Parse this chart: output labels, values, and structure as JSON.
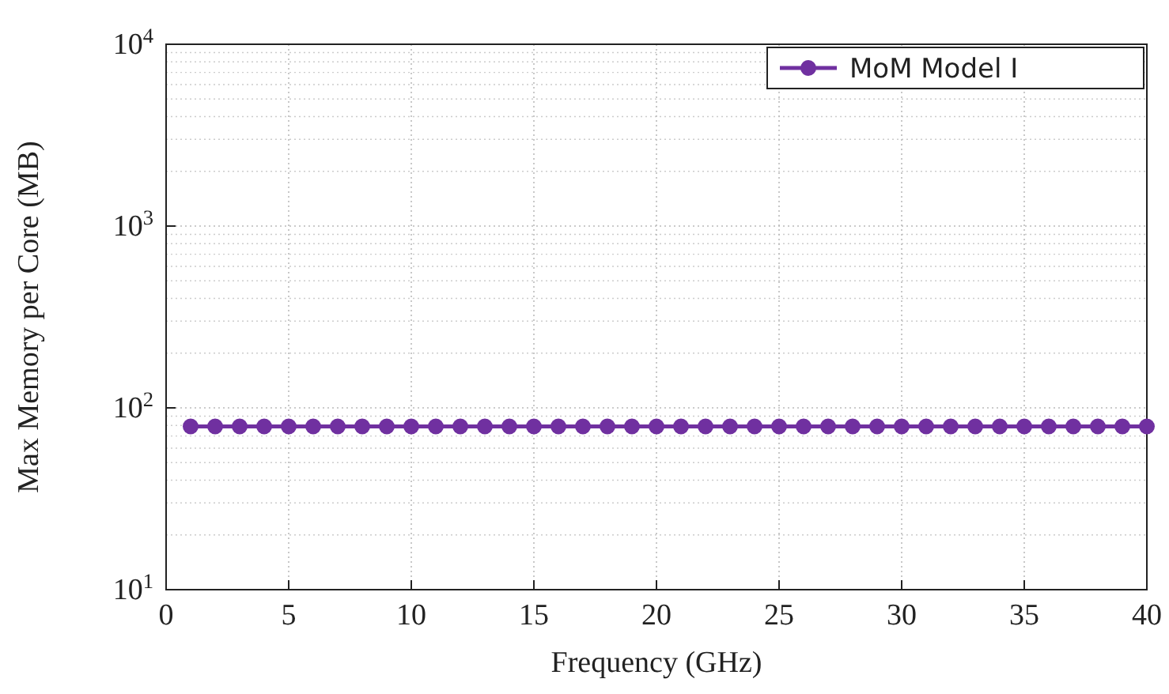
{
  "chart_data": {
    "type": "line",
    "xlabel": "Frequency (GHz)",
    "ylabel": "Max Memory per Core (MB)",
    "x": [
      1,
      2,
      3,
      4,
      5,
      6,
      7,
      8,
      9,
      10,
      11,
      12,
      13,
      14,
      15,
      16,
      17,
      18,
      19,
      20,
      21,
      22,
      23,
      24,
      25,
      26,
      27,
      28,
      29,
      30,
      31,
      32,
      33,
      34,
      35,
      36,
      37,
      38,
      39,
      40
    ],
    "series": [
      {
        "name": "MoM Model I",
        "color": "#7030a0",
        "values": [
          79,
          79,
          79,
          79,
          79,
          79,
          79,
          79,
          79,
          79,
          79,
          79,
          79,
          79,
          79,
          79,
          79,
          79,
          79,
          79,
          79,
          79,
          79,
          79,
          79,
          79,
          79,
          79,
          79,
          79,
          79,
          79,
          79,
          79,
          79,
          79,
          79,
          79,
          79,
          79
        ]
      }
    ],
    "xlim": [
      0,
      40
    ],
    "xticks": [
      0,
      5,
      10,
      15,
      20,
      25,
      30,
      35,
      40
    ],
    "ylim": [
      10,
      10000
    ],
    "yticks": [
      {
        "value": 10,
        "label": "10$^{1}$"
      },
      {
        "value": 100,
        "label": "10$^{2}$"
      },
      {
        "value": 1000,
        "label": "10$^{3}$"
      },
      {
        "value": 10000,
        "label": "10$^{4}$"
      }
    ],
    "log": "y",
    "grid": true,
    "legend": "top right",
    "marker": "circle",
    "line_style": "solid"
  }
}
